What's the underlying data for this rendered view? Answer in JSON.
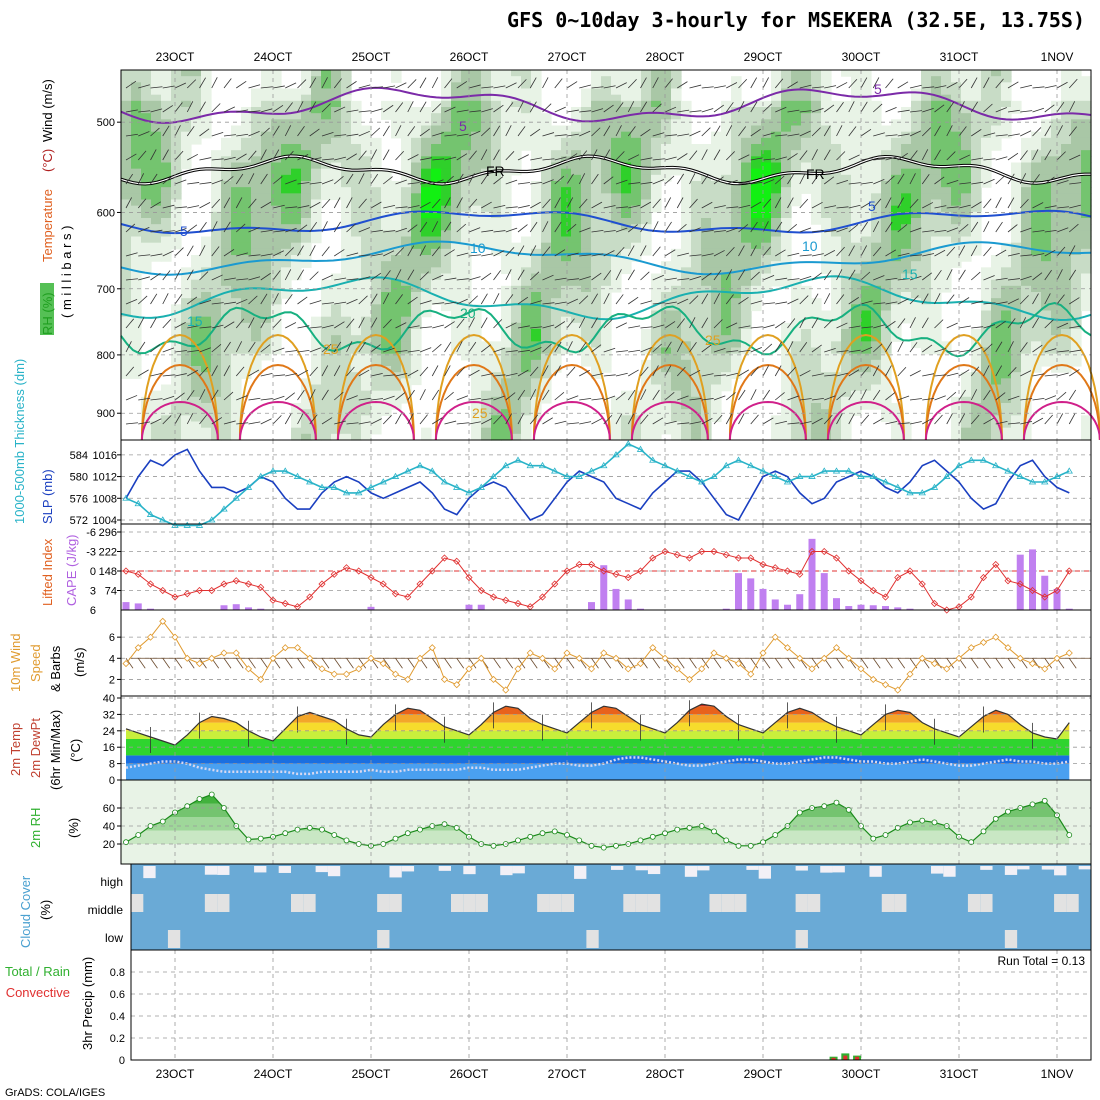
{
  "title": "GFS 0~10day 3-hourly for MSEKERA (32.5E, 13.75S)",
  "credit": "GrADS: COLA/IGES",
  "time_axis": {
    "labels": [
      "23OCT",
      "24OCT",
      "25OCT",
      "26OCT",
      "27OCT",
      "28OCT",
      "29OCT",
      "30OCT",
      "31OCT",
      "1NOV"
    ],
    "start_offset_days": -0.5,
    "end_offset_days": 9.125
  },
  "chart_data": [
    {
      "type": "heatmap",
      "panel": "upper-air",
      "ylabel_parts": [
        {
          "text": "RH (%)",
          "color": "#1f9e1f"
        },
        {
          "text": "Temperature",
          "color": "#e06020"
        },
        {
          "text": "(°C)",
          "color": "#b02020"
        },
        {
          "text": "Wind (m/s)",
          "color": "#000000"
        }
      ],
      "ylabel_units": "( m i l l i b a r s )",
      "yticks": [
        500,
        600,
        700,
        800,
        900
      ],
      "ylim": [
        950,
        450
      ],
      "log_scale": true,
      "contour_labels": [
        {
          "text": "5",
          "color": "#7b2aa8"
        },
        {
          "text": "5",
          "color": "#7b2aa8"
        },
        {
          "text": "FR",
          "color": "#000000"
        },
        {
          "text": "FR",
          "color": "#000000"
        },
        {
          "text": "5",
          "color": "#1f4fd0"
        },
        {
          "text": "5",
          "color": "#1f4fd0"
        },
        {
          "text": "10",
          "color": "#1a9ad0"
        },
        {
          "text": "10",
          "color": "#1a9ad0"
        },
        {
          "text": "15",
          "color": "#19b0b0"
        },
        {
          "text": "15",
          "color": "#19b0b0"
        },
        {
          "text": "20",
          "color": "#17b080"
        },
        {
          "text": "25",
          "color": "#e0a020"
        },
        {
          "text": "25",
          "color": "#e0a020"
        },
        {
          "text": "25",
          "color": "#e0a020"
        }
      ]
    },
    {
      "type": "line",
      "panel": "thickness-slp",
      "ylabel_left": "1000-500mb Thickness (dm)",
      "ylabel_right": "SLP (mb)",
      "yticks_left": [
        572,
        576,
        580,
        584
      ],
      "yticks_right": [
        1004,
        1008,
        1012,
        1016
      ],
      "series": [
        {
          "name": "SLP (mb)",
          "color": "#1a3fc0",
          "values": [
            1008,
            1012,
            1015,
            1014,
            1016,
            1017,
            1013,
            1010,
            1010,
            1009,
            1010,
            1012,
            1011,
            1008,
            1006,
            1006,
            1009,
            1011,
            1012,
            1011,
            1009,
            1008,
            1009,
            1010,
            1011,
            1009,
            1006,
            1005,
            1008,
            1010,
            1011,
            1010,
            1007,
            1004,
            1005,
            1008,
            1011,
            1013,
            1012,
            1011,
            1008,
            1007,
            1006,
            1009,
            1011,
            1013,
            1013,
            1011,
            1008,
            1005,
            1004,
            1008,
            1012,
            1013,
            1012,
            1009,
            1007,
            1008,
            1011,
            1012,
            1013,
            1012,
            1010,
            1009,
            1011,
            1014,
            1015,
            1013,
            1011,
            1008,
            1006,
            1007,
            1011,
            1014,
            1015,
            1012,
            1010,
            1009
          ]
        },
        {
          "name": "Thickness (dm)",
          "color": "#29b3c8",
          "values": [
            576,
            575,
            573,
            572,
            571,
            571,
            571,
            572,
            574,
            576,
            578,
            580,
            581,
            581,
            580,
            579,
            578,
            578,
            577,
            577,
            578,
            579,
            580,
            581,
            582,
            581,
            579,
            578,
            577,
            578,
            580,
            582,
            583,
            582,
            582,
            581,
            580,
            580,
            581,
            582,
            584,
            586,
            585,
            583,
            582,
            581,
            580,
            579,
            580,
            582,
            583,
            582,
            581,
            580,
            579,
            580,
            580,
            581,
            581,
            581,
            580,
            580,
            579,
            578,
            577,
            577,
            578,
            580,
            582,
            583,
            583,
            582,
            581,
            580,
            579,
            579,
            580,
            581
          ]
        }
      ]
    },
    {
      "type": "bar",
      "panel": "cape-li",
      "ylabel_left": "Lifted Index",
      "ylabel_right": "CAPE (J/kg)",
      "yticks_left": [
        -6,
        -3,
        0,
        3,
        6
      ],
      "yticks_right": [
        74,
        148,
        222,
        296
      ],
      "series": [
        {
          "name": "CAPE (J/kg)",
          "color": "#c080f0",
          "values": [
            30,
            25,
            5,
            0,
            0,
            0,
            0,
            0,
            18,
            22,
            10,
            5,
            0,
            0,
            0,
            0,
            0,
            0,
            0,
            0,
            12,
            0,
            0,
            0,
            0,
            0,
            0,
            0,
            20,
            20,
            0,
            0,
            0,
            0,
            0,
            0,
            0,
            0,
            30,
            170,
            80,
            40,
            5,
            0,
            0,
            0,
            0,
            0,
            0,
            5,
            140,
            120,
            80,
            40,
            20,
            60,
            270,
            140,
            45,
            15,
            20,
            18,
            15,
            10,
            5,
            0,
            0,
            0,
            0,
            0,
            0,
            0,
            0,
            210,
            230,
            130,
            80,
            5
          ]
        },
        {
          "name": "Lifted Index",
          "color": "#e03030",
          "values": [
            0.0,
            0.5,
            2.0,
            3.0,
            4.0,
            3.5,
            3.0,
            3.0,
            2.0,
            1.5,
            2.0,
            2.5,
            4.5,
            5.0,
            5.5,
            4.0,
            2.0,
            0.5,
            -0.5,
            0.0,
            1.0,
            2.0,
            3.5,
            4.0,
            2.0,
            0.0,
            -2.0,
            -1.5,
            1.0,
            3.0,
            4.0,
            4.5,
            5.0,
            5.5,
            4.0,
            2.0,
            0.0,
            -1.0,
            -1.0,
            0.0,
            0.5,
            1.0,
            0.0,
            -2.0,
            -3.0,
            -2.5,
            -2.0,
            -3.0,
            -3.0,
            -2.5,
            -2.0,
            -2.0,
            -1.0,
            -0.5,
            0.0,
            0.5,
            -3.0,
            -3.0,
            -2.0,
            0.0,
            1.5,
            3.0,
            4.0,
            1.0,
            0.0,
            2.0,
            5.0,
            6.0,
            5.5,
            4.0,
            1.0,
            -1.0,
            1.5,
            2.0,
            3.0,
            4.0,
            3.0,
            0.0
          ]
        }
      ]
    },
    {
      "type": "line",
      "panel": "wind10m",
      "ylabel_lines": [
        "10m Wind",
        "Speed",
        "& Barbs",
        "(m/s)"
      ],
      "yticks": [
        2,
        4,
        6
      ],
      "series": [
        {
          "name": "10m Wind Speed (m/s)",
          "color": "#e09b30",
          "values": [
            3.5,
            5.0,
            6.0,
            7.5,
            6.0,
            4.0,
            3.5,
            4.0,
            4.5,
            4.5,
            3.0,
            2.0,
            4.0,
            5.0,
            5.0,
            4.0,
            3.0,
            2.5,
            2.5,
            3.0,
            4.0,
            3.5,
            2.5,
            2.0,
            4.0,
            5.0,
            2.0,
            1.5,
            3.0,
            4.0,
            2.0,
            1.0,
            3.0,
            4.5,
            4.0,
            3.0,
            4.5,
            4.0,
            3.0,
            4.5,
            4.0,
            3.0,
            3.5,
            5.0,
            4.0,
            3.0,
            2.0,
            3.0,
            4.5,
            4.0,
            3.5,
            2.5,
            4.5,
            6.0,
            5.0,
            4.0,
            3.0,
            4.0,
            5.0,
            4.0,
            3.0,
            2.0,
            1.5,
            1.0,
            2.5,
            4.0,
            3.5,
            3.0,
            4.0,
            5.0,
            5.5,
            6.0,
            5.0,
            4.0,
            3.5,
            3.0,
            4.0,
            4.5
          ]
        }
      ]
    },
    {
      "type": "area",
      "panel": "temp2m",
      "ylabel_lines": [
        "2m Temp",
        "2m DewPt",
        "(6hr Min/Max)",
        "(°C)"
      ],
      "yticks": [
        0,
        8,
        16,
        24,
        32,
        40
      ],
      "series": [
        {
          "name": "2m Temp",
          "values": [
            25,
            23,
            21,
            19,
            17,
            22,
            28,
            31,
            30,
            28,
            24,
            21,
            19,
            25,
            31,
            33,
            31,
            29,
            25,
            22,
            21,
            27,
            32,
            35,
            34,
            30,
            26,
            24,
            22,
            27,
            33,
            36,
            35,
            30,
            27,
            25,
            23,
            28,
            33,
            36,
            35,
            31,
            27,
            25,
            23,
            28,
            34,
            37,
            36,
            31,
            27,
            25,
            23,
            28,
            33,
            35,
            33,
            29,
            26,
            24,
            22,
            27,
            32,
            34,
            33,
            28,
            25,
            23,
            21,
            26,
            31,
            34,
            32,
            27,
            23,
            21,
            20,
            28
          ]
        },
        {
          "name": "2m DewPt",
          "values": [
            6,
            7,
            8,
            9,
            9,
            8,
            6,
            5,
            4,
            4,
            4,
            4,
            4,
            4,
            3,
            3,
            4,
            4,
            4,
            4,
            5,
            4,
            4,
            5,
            5,
            5,
            5,
            5,
            6,
            6,
            5,
            5,
            5,
            6,
            7,
            8,
            8,
            7,
            7,
            8,
            10,
            11,
            11,
            10,
            9,
            8,
            7,
            7,
            8,
            9,
            10,
            10,
            9,
            8,
            8,
            9,
            10,
            11,
            11,
            10,
            9,
            9,
            8,
            8,
            9,
            10,
            9,
            8,
            7,
            7,
            8,
            9,
            10,
            9,
            9,
            8,
            8,
            9
          ]
        }
      ]
    },
    {
      "type": "area",
      "panel": "rh2m",
      "ylabel": "2m RH",
      "yunit": "(%)",
      "yticks": [
        20,
        40,
        60
      ],
      "series": [
        {
          "name": "2m RH (%)",
          "color": "#30b030",
          "values": [
            22,
            30,
            40,
            45,
            55,
            62,
            70,
            75,
            60,
            40,
            25,
            26,
            28,
            32,
            36,
            38,
            36,
            30,
            24,
            20,
            18,
            20,
            26,
            32,
            36,
            40,
            42,
            38,
            28,
            20,
            18,
            20,
            24,
            28,
            32,
            34,
            30,
            24,
            18,
            16,
            18,
            20,
            24,
            28,
            32,
            36,
            38,
            40,
            34,
            24,
            18,
            18,
            22,
            30,
            40,
            55,
            60,
            62,
            66,
            58,
            40,
            26,
            30,
            38,
            44,
            46,
            44,
            40,
            28,
            22,
            34,
            48,
            56,
            60,
            64,
            68,
            52,
            30
          ]
        }
      ]
    },
    {
      "type": "heatmap",
      "panel": "cloud",
      "ylabel": "Cloud Cover",
      "yunit": "(%)",
      "levels": [
        "high",
        "middle",
        "low"
      ]
    },
    {
      "type": "bar",
      "panel": "precip",
      "ylabel_parts": [
        {
          "text": "Total / Rain",
          "color": "#30b030"
        },
        {
          "text": "Convective",
          "color": "#e03030"
        }
      ],
      "ylabel": "3hr Precip (mm)",
      "yticks": [
        0,
        0.2,
        0.4,
        0.6,
        0.8
      ],
      "ylim": [
        0,
        1.0
      ],
      "run_total_label": "Run Total = 0.13",
      "series": [
        {
          "name": "Total / Rain",
          "color": "#30b030",
          "values": [
            0.03,
            0.06,
            0.04
          ]
        },
        {
          "name": "Convective",
          "color": "#e03030",
          "values": [
            0.02,
            0.04,
            0.03
          ]
        }
      ],
      "bar_times_days": [
        6.72,
        6.84,
        6.96
      ]
    }
  ]
}
